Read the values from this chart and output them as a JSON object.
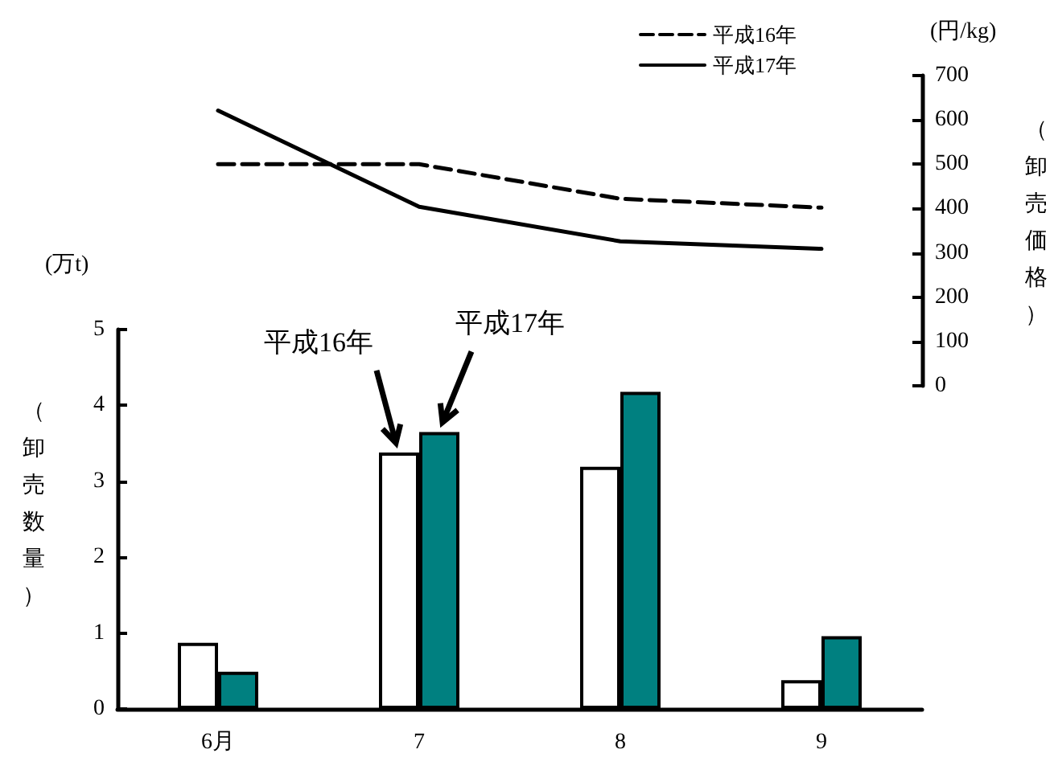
{
  "chart_data": [
    {
      "type": "line",
      "categories": [
        null,
        null,
        null,
        null
      ],
      "ylabel": "（卸売価格）",
      "annotations": [
        "(円/kg)"
      ],
      "ylim": [
        0,
        700
      ],
      "yticks": [
        0,
        100,
        200,
        300,
        400,
        500,
        600,
        700
      ],
      "series": [
        {
          "name": "平成16年",
          "color": "#000000",
          "line_style": "dashed",
          "values": [
            500,
            500,
            422,
            402
          ]
        },
        {
          "name": "平成17年",
          "color": "#000000",
          "line_style": "solid",
          "values": [
            621,
            404,
            326,
            309
          ]
        }
      ],
      "grid": false,
      "legend": "top right",
      "marker": "none"
    },
    {
      "type": "bar",
      "categories": [
        "6月",
        "7",
        "8",
        "9"
      ],
      "ylabel": "（卸売数量）",
      "annotations": [
        "(万t)"
      ],
      "ylim": [
        0,
        5
      ],
      "yticks": [
        0,
        1,
        2,
        3,
        4,
        5
      ],
      "series": [
        {
          "name": "平成16年",
          "color": "#ffffff",
          "values": [
            0.87,
            3.38,
            3.19,
            0.38
          ]
        },
        {
          "name": "平成17年",
          "color": "#008080",
          "values": [
            0.49,
            3.65,
            4.18,
            0.96
          ]
        }
      ],
      "grid": false
    }
  ]
}
